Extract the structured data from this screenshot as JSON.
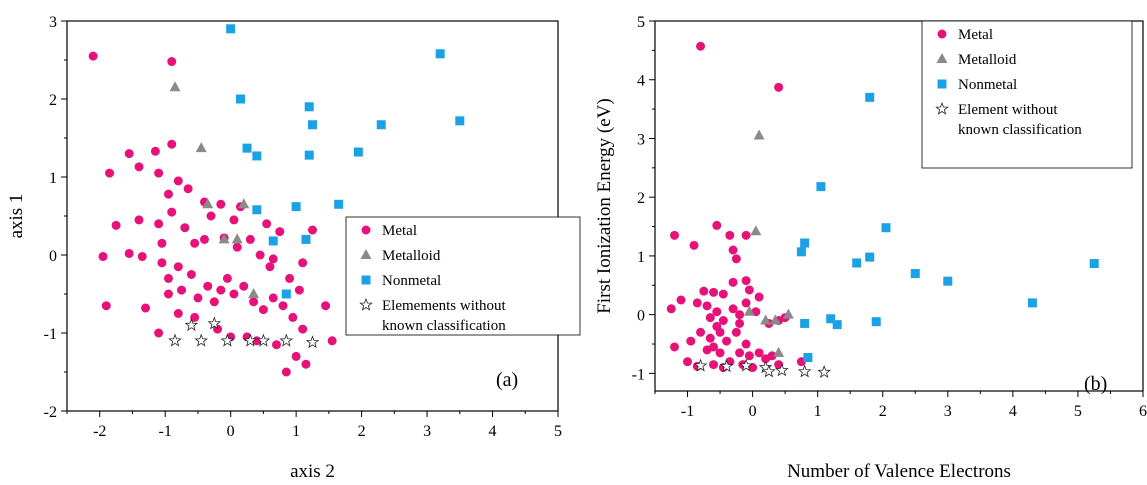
{
  "colors": {
    "Metal": "#e6127a",
    "Metalloid": "#8a8a8a",
    "Nonmetal": "#1ba1e6",
    "Other": "#ffffff"
  },
  "chart_data": [
    {
      "type": "scatter",
      "panel_label": "(a)",
      "xlabel": "axis 2",
      "ylabel": "axis 1",
      "xlim": [
        -2.5,
        5
      ],
      "ylim": [
        -2,
        3
      ],
      "xticks": [
        -2,
        -1,
        0,
        1,
        2,
        3,
        4,
        5
      ],
      "yticks": [
        -2,
        -1,
        0,
        1,
        2,
        3
      ],
      "legend_position": "center-right",
      "series": [
        {
          "name": "Metal",
          "marker": "circle",
          "points": [
            [
              -2.1,
              2.55
            ],
            [
              -0.9,
              2.48
            ],
            [
              -1.95,
              -0.02
            ],
            [
              -1.85,
              1.05
            ],
            [
              -1.9,
              -0.65
            ],
            [
              -1.75,
              0.38
            ],
            [
              -1.55,
              1.3
            ],
            [
              -1.55,
              0.02
            ],
            [
              -1.4,
              1.13
            ],
            [
              -1.4,
              0.45
            ],
            [
              -1.3,
              -0.68
            ],
            [
              -1.35,
              -0.02
            ],
            [
              -1.15,
              1.33
            ],
            [
              -1.1,
              1.05
            ],
            [
              -1.1,
              0.4
            ],
            [
              -1.05,
              0.15
            ],
            [
              -1.05,
              -0.1
            ],
            [
              -0.95,
              0.78
            ],
            [
              -0.95,
              -0.3
            ],
            [
              -0.95,
              -0.5
            ],
            [
              -1.1,
              -1.0
            ],
            [
              -0.9,
              1.42
            ],
            [
              -0.9,
              0.55
            ],
            [
              -0.8,
              0.95
            ],
            [
              -0.8,
              -0.15
            ],
            [
              -0.8,
              -0.75
            ],
            [
              -0.75,
              -0.45
            ],
            [
              -0.7,
              0.35
            ],
            [
              -0.65,
              0.85
            ],
            [
              -0.6,
              -0.25
            ],
            [
              -0.55,
              0.15
            ],
            [
              -0.55,
              -0.8
            ],
            [
              -0.5,
              -0.55
            ],
            [
              -0.4,
              0.68
            ],
            [
              -0.4,
              0.2
            ],
            [
              -0.35,
              -0.4
            ],
            [
              -0.3,
              0.5
            ],
            [
              -0.25,
              -0.6
            ],
            [
              -0.2,
              -0.95
            ],
            [
              -0.15,
              0.65
            ],
            [
              -0.15,
              -0.45
            ],
            [
              -0.1,
              0.22
            ],
            [
              -0.05,
              -0.3
            ],
            [
              0.0,
              -1.05
            ],
            [
              0.05,
              -0.5
            ],
            [
              0.05,
              0.45
            ],
            [
              0.1,
              0.1
            ],
            [
              0.15,
              0.62
            ],
            [
              0.2,
              -0.4
            ],
            [
              0.25,
              -1.05
            ],
            [
              0.3,
              0.2
            ],
            [
              0.35,
              -0.6
            ],
            [
              0.4,
              -1.1
            ],
            [
              0.45,
              0.0
            ],
            [
              0.5,
              -0.7
            ],
            [
              0.55,
              0.4
            ],
            [
              0.6,
              -0.15
            ],
            [
              0.65,
              -0.55
            ],
            [
              0.65,
              -0.05
            ],
            [
              0.7,
              -1.15
            ],
            [
              0.75,
              0.3
            ],
            [
              0.8,
              -0.65
            ],
            [
              0.85,
              -1.5
            ],
            [
              0.9,
              -0.3
            ],
            [
              0.95,
              -0.8
            ],
            [
              1.0,
              -1.3
            ],
            [
              1.05,
              -0.45
            ],
            [
              1.1,
              -0.95
            ],
            [
              1.1,
              -0.1
            ],
            [
              1.15,
              -1.4
            ],
            [
              1.25,
              0.32
            ],
            [
              1.45,
              -0.65
            ],
            [
              1.55,
              -1.1
            ]
          ]
        },
        {
          "name": "Metalloid",
          "marker": "triangle",
          "points": [
            [
              -0.85,
              2.15
            ],
            [
              -0.45,
              1.37
            ],
            [
              -0.35,
              0.65
            ],
            [
              0.2,
              0.65
            ],
            [
              -0.1,
              0.2
            ],
            [
              0.1,
              0.2
            ],
            [
              0.35,
              -0.5
            ]
          ]
        },
        {
          "name": "Nonmetal",
          "marker": "square",
          "points": [
            [
              0.0,
              2.9
            ],
            [
              3.2,
              2.58
            ],
            [
              0.15,
              2.0
            ],
            [
              1.2,
              1.9
            ],
            [
              1.25,
              1.67
            ],
            [
              2.3,
              1.67
            ],
            [
              3.5,
              1.72
            ],
            [
              0.25,
              1.37
            ],
            [
              0.4,
              1.27
            ],
            [
              1.2,
              1.28
            ],
            [
              1.95,
              1.32
            ],
            [
              0.4,
              0.58
            ],
            [
              1.0,
              0.62
            ],
            [
              1.65,
              0.65
            ],
            [
              0.65,
              0.18
            ],
            [
              1.15,
              0.2
            ],
            [
              0.85,
              -0.5
            ]
          ]
        },
        {
          "name": "Elemements without\nknown classification",
          "marker": "star",
          "points": [
            [
              -0.85,
              -1.1
            ],
            [
              -0.6,
              -0.9
            ],
            [
              -0.45,
              -1.1
            ],
            [
              -0.25,
              -0.88
            ],
            [
              -0.05,
              -1.1
            ],
            [
              0.3,
              -1.1
            ],
            [
              0.5,
              -1.1
            ],
            [
              0.85,
              -1.1
            ],
            [
              1.25,
              -1.12
            ]
          ]
        }
      ]
    },
    {
      "type": "scatter",
      "panel_label": "(b)",
      "xlabel": "Number of Valence Electrons",
      "ylabel": "First Ionization Energy (eV)",
      "xlim": [
        -1.5,
        6
      ],
      "ylim": [
        -1.3,
        5
      ],
      "xticks": [
        -1,
        0,
        1,
        2,
        3,
        4,
        5,
        6
      ],
      "yticks": [
        -1,
        0,
        1,
        2,
        3,
        4,
        5
      ],
      "legend_position": "top-right",
      "series": [
        {
          "name": "Metal",
          "marker": "circle",
          "points": [
            [
              -0.8,
              4.57
            ],
            [
              0.4,
              3.87
            ],
            [
              -1.2,
              1.35
            ],
            [
              -0.9,
              1.18
            ],
            [
              -0.55,
              1.52
            ],
            [
              -0.35,
              1.35
            ],
            [
              -0.3,
              1.1
            ],
            [
              -0.1,
              1.35
            ],
            [
              -0.25,
              0.95
            ],
            [
              -0.05,
              0.42
            ],
            [
              -0.1,
              0.58
            ],
            [
              -0.75,
              0.4
            ],
            [
              -0.6,
              0.38
            ],
            [
              -0.45,
              0.35
            ],
            [
              -0.3,
              0.55
            ],
            [
              -1.25,
              0.1
            ],
            [
              -1.1,
              0.25
            ],
            [
              -0.85,
              0.2
            ],
            [
              -0.7,
              0.15
            ],
            [
              -0.55,
              0.05
            ],
            [
              -0.45,
              -0.1
            ],
            [
              -0.3,
              0.1
            ],
            [
              -0.2,
              0.0
            ],
            [
              -0.1,
              0.2
            ],
            [
              0.05,
              0.05
            ],
            [
              0.1,
              0.3
            ],
            [
              -1.2,
              -0.55
            ],
            [
              -0.95,
              -0.45
            ],
            [
              -0.8,
              -0.3
            ],
            [
              -0.7,
              -0.6
            ],
            [
              -0.65,
              -0.4
            ],
            [
              -0.55,
              -0.2
            ],
            [
              -0.5,
              -0.65
            ],
            [
              -0.4,
              -0.45
            ],
            [
              -0.35,
              -0.8
            ],
            [
              -0.25,
              -0.3
            ],
            [
              -0.2,
              -0.65
            ],
            [
              -0.1,
              -0.5
            ],
            [
              -0.05,
              -0.7
            ],
            [
              0.0,
              -0.9
            ],
            [
              0.1,
              -0.65
            ],
            [
              0.2,
              -0.75
            ],
            [
              0.3,
              -0.7
            ],
            [
              0.4,
              -0.85
            ],
            [
              -1.0,
              -0.8
            ],
            [
              -0.85,
              -0.88
            ],
            [
              -0.6,
              -0.85
            ],
            [
              -0.45,
              -0.9
            ],
            [
              -0.15,
              -0.85
            ],
            [
              0.75,
              -0.8
            ],
            [
              0.4,
              -0.1
            ],
            [
              0.5,
              -0.05
            ],
            [
              0.25,
              -0.15
            ],
            [
              -0.65,
              -0.05
            ],
            [
              -0.6,
              -0.55
            ],
            [
              -0.5,
              -0.3
            ],
            [
              -0.2,
              -0.15
            ]
          ]
        },
        {
          "name": "Metalloid",
          "marker": "triangle",
          "points": [
            [
              0.1,
              3.05
            ],
            [
              0.05,
              1.42
            ],
            [
              -0.05,
              0.05
            ],
            [
              0.2,
              -0.1
            ],
            [
              0.35,
              -0.1
            ],
            [
              0.55,
              0.0
            ],
            [
              0.4,
              -0.65
            ]
          ]
        },
        {
          "name": "Nonmetal",
          "marker": "square",
          "points": [
            [
              1.8,
              3.7
            ],
            [
              1.05,
              2.18
            ],
            [
              2.05,
              1.48
            ],
            [
              0.8,
              1.22
            ],
            [
              0.75,
              1.07
            ],
            [
              1.6,
              0.88
            ],
            [
              1.8,
              0.98
            ],
            [
              2.5,
              0.7
            ],
            [
              3.0,
              0.57
            ],
            [
              5.25,
              0.87
            ],
            [
              4.3,
              0.2
            ],
            [
              0.8,
              -0.15
            ],
            [
              1.2,
              -0.07
            ],
            [
              1.3,
              -0.17
            ],
            [
              1.9,
              -0.12
            ],
            [
              0.85,
              -0.73
            ]
          ]
        },
        {
          "name": "Element without\nknown classification",
          "marker": "star",
          "points": [
            [
              -0.8,
              -0.87
            ],
            [
              -0.4,
              -0.88
            ],
            [
              -0.1,
              -0.87
            ],
            [
              0.2,
              -0.9
            ],
            [
              0.25,
              -0.97
            ],
            [
              0.45,
              -0.95
            ],
            [
              0.8,
              -0.97
            ],
            [
              1.1,
              -0.98
            ]
          ]
        }
      ]
    }
  ]
}
